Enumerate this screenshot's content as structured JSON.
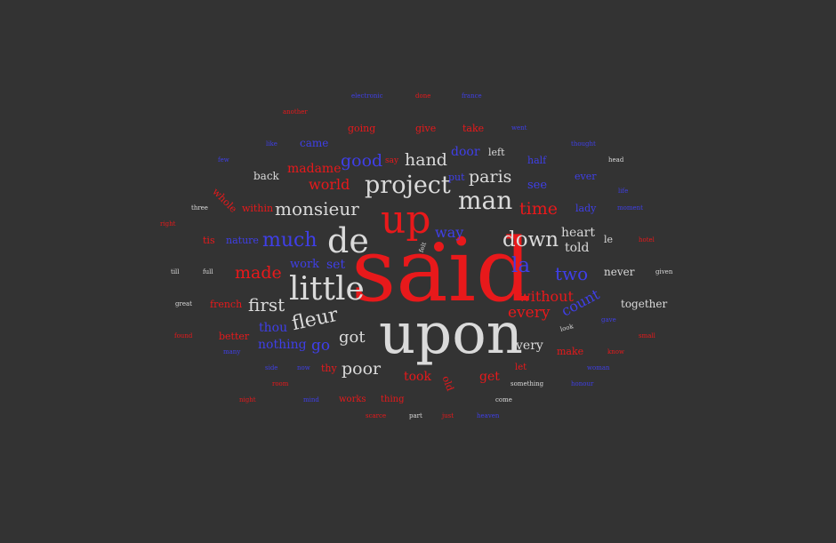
{
  "colors": {
    "background": "#333333",
    "red": "#e8191b",
    "blue": "#3f3fe8",
    "white": "#dadada"
  },
  "words": [
    {
      "text": "said",
      "color": "red"
    },
    {
      "text": "upon",
      "color": "white"
    },
    {
      "text": "up",
      "color": "red"
    },
    {
      "text": "de",
      "color": "white"
    },
    {
      "text": "little",
      "color": "white"
    },
    {
      "text": "man",
      "color": "white"
    },
    {
      "text": "project",
      "color": "white"
    },
    {
      "text": "monsieur",
      "color": "white"
    },
    {
      "text": "much",
      "color": "blue"
    },
    {
      "text": "down",
      "color": "white"
    },
    {
      "text": "la",
      "color": "blue"
    },
    {
      "text": "fleur",
      "color": "white"
    },
    {
      "text": "made",
      "color": "red"
    },
    {
      "text": "two",
      "color": "blue"
    },
    {
      "text": "first",
      "color": "white"
    },
    {
      "text": "time",
      "color": "red"
    },
    {
      "text": "hand",
      "color": "white"
    },
    {
      "text": "paris",
      "color": "white"
    },
    {
      "text": "good",
      "color": "blue"
    },
    {
      "text": "way",
      "color": "blue"
    },
    {
      "text": "poor",
      "color": "white"
    },
    {
      "text": "every",
      "color": "red"
    },
    {
      "text": "without",
      "color": "red"
    },
    {
      "text": "count",
      "color": "blue"
    },
    {
      "text": "got",
      "color": "white"
    },
    {
      "text": "world",
      "color": "red"
    },
    {
      "text": "go",
      "color": "blue"
    },
    {
      "text": "heart",
      "color": "white"
    },
    {
      "text": "told",
      "color": "white"
    },
    {
      "text": "madame",
      "color": "red"
    },
    {
      "text": "thou",
      "color": "blue"
    },
    {
      "text": "nothing",
      "color": "blue"
    },
    {
      "text": "very",
      "color": "white"
    },
    {
      "text": "door",
      "color": "blue"
    },
    {
      "text": "set",
      "color": "blue"
    },
    {
      "text": "work",
      "color": "blue"
    },
    {
      "text": "took",
      "color": "red"
    },
    {
      "text": "get",
      "color": "red"
    },
    {
      "text": "together",
      "color": "white"
    },
    {
      "text": "never",
      "color": "white"
    },
    {
      "text": "see",
      "color": "blue"
    },
    {
      "text": "back",
      "color": "white"
    },
    {
      "text": "came",
      "color": "blue"
    },
    {
      "text": "going",
      "color": "red"
    },
    {
      "text": "give",
      "color": "red"
    },
    {
      "text": "take",
      "color": "red"
    },
    {
      "text": "left",
      "color": "white"
    },
    {
      "text": "half",
      "color": "blue"
    },
    {
      "text": "ever",
      "color": "blue"
    },
    {
      "text": "lady",
      "color": "blue"
    },
    {
      "text": "le",
      "color": "white"
    },
    {
      "text": "make",
      "color": "red"
    },
    {
      "text": "better",
      "color": "red"
    },
    {
      "text": "french",
      "color": "red"
    },
    {
      "text": "within",
      "color": "red"
    },
    {
      "text": "whole",
      "color": "red"
    },
    {
      "text": "nature",
      "color": "blue"
    },
    {
      "text": "tis",
      "color": "red"
    },
    {
      "text": "put",
      "color": "blue"
    },
    {
      "text": "thy",
      "color": "red"
    },
    {
      "text": "old",
      "color": "red"
    },
    {
      "text": "let",
      "color": "red"
    },
    {
      "text": "works",
      "color": "red"
    },
    {
      "text": "thing",
      "color": "red"
    },
    {
      "text": "say",
      "color": "red"
    },
    {
      "text": "electronic",
      "color": "blue"
    },
    {
      "text": "done",
      "color": "red"
    },
    {
      "text": "france",
      "color": "blue"
    },
    {
      "text": "another",
      "color": "red"
    },
    {
      "text": "went",
      "color": "blue"
    },
    {
      "text": "like",
      "color": "blue"
    },
    {
      "text": "thought",
      "color": "blue"
    },
    {
      "text": "few",
      "color": "blue"
    },
    {
      "text": "head",
      "color": "white"
    },
    {
      "text": "life",
      "color": "blue"
    },
    {
      "text": "three",
      "color": "white"
    },
    {
      "text": "moment",
      "color": "blue"
    },
    {
      "text": "right",
      "color": "red"
    },
    {
      "text": "felt",
      "color": "white"
    },
    {
      "text": "hotel",
      "color": "red"
    },
    {
      "text": "till",
      "color": "white"
    },
    {
      "text": "full",
      "color": "white"
    },
    {
      "text": "given",
      "color": "white"
    },
    {
      "text": "great",
      "color": "white"
    },
    {
      "text": "gave",
      "color": "blue"
    },
    {
      "text": "look",
      "color": "white"
    },
    {
      "text": "found",
      "color": "red"
    },
    {
      "text": "small",
      "color": "red"
    },
    {
      "text": "many",
      "color": "blue"
    },
    {
      "text": "know",
      "color": "red"
    },
    {
      "text": "side",
      "color": "blue"
    },
    {
      "text": "now",
      "color": "blue"
    },
    {
      "text": "woman",
      "color": "blue"
    },
    {
      "text": "room",
      "color": "red"
    },
    {
      "text": "something",
      "color": "white"
    },
    {
      "text": "honour",
      "color": "blue"
    },
    {
      "text": "night",
      "color": "red"
    },
    {
      "text": "mind",
      "color": "blue"
    },
    {
      "text": "come",
      "color": "white"
    },
    {
      "text": "scarce",
      "color": "red"
    },
    {
      "text": "part",
      "color": "white"
    },
    {
      "text": "just",
      "color": "red"
    },
    {
      "text": "heaven",
      "color": "blue"
    }
  ]
}
